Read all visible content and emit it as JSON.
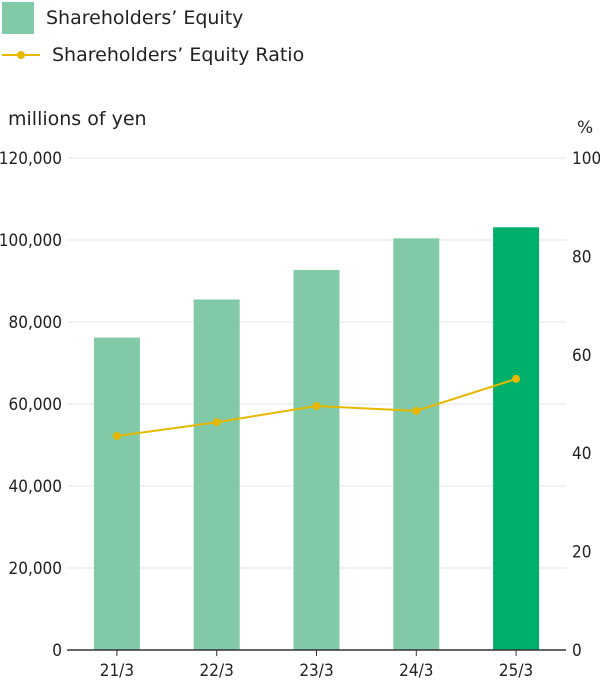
{
  "legend": {
    "bar_label": "Shareholders’ Equity",
    "line_label": "Shareholders’ Equity Ratio"
  },
  "units": {
    "left": "millions of yen",
    "right": "%"
  },
  "colors": {
    "bar": "#82c9a8",
    "bar_highlight": "#00b06a",
    "line": "#e6b800",
    "grid": "#e6e6e6",
    "axis": "#333333"
  },
  "chart_data": {
    "type": "bar",
    "title": "",
    "categories": [
      "21/3",
      "22/3",
      "23/3",
      "24/3",
      "25/3"
    ],
    "series": [
      {
        "name": "Shareholders’ Equity",
        "axis": "left",
        "type": "bar",
        "values": [
          76200,
          85500,
          92700,
          100400,
          103100
        ],
        "highlight_index": 4
      },
      {
        "name": "Shareholders’ Equity Ratio",
        "axis": "right",
        "type": "line",
        "values": [
          43.5,
          46.3,
          49.6,
          48.6,
          55.1
        ]
      }
    ],
    "ylabel": "millions of yen",
    "ylim": [
      0,
      120000
    ],
    "yticks": [
      "0",
      "20,000",
      "40,000",
      "60,000",
      "80,000",
      "100,000",
      "120,000"
    ],
    "y2label": "%",
    "y2lim": [
      0,
      100
    ],
    "y2ticks": [
      "0",
      "20",
      "40",
      "60",
      "80",
      "100"
    ]
  }
}
